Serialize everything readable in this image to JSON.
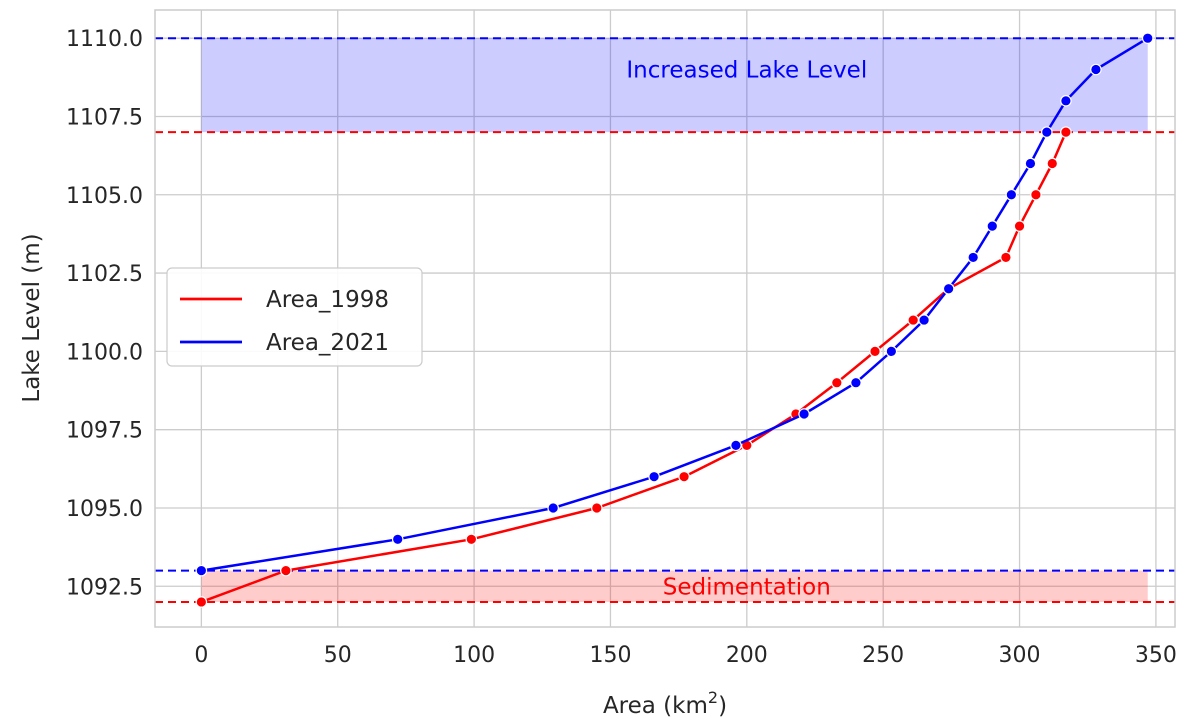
{
  "chart_data": {
    "type": "line",
    "xlabel_base": "Area (km",
    "xlabel_sup": "2",
    "xlabel_tail": ")",
    "ylabel": "Lake Level (m)",
    "xlim": [
      -17,
      357
    ],
    "ylim": [
      1091.2,
      1110.9
    ],
    "xticks": [
      0,
      50,
      100,
      150,
      200,
      250,
      300,
      350
    ],
    "yticks": [
      1092.5,
      1095.0,
      1097.5,
      1100.0,
      1102.5,
      1105.0,
      1107.5,
      1110.0
    ],
    "grid": true,
    "legend_position": "center-left",
    "series": [
      {
        "name": "Area_1998",
        "color": "#ff0000",
        "x": [
          0,
          31,
          99,
          145,
          177,
          200,
          218,
          233,
          247,
          261,
          274,
          295,
          300,
          306,
          312,
          317
        ],
        "y": [
          1092,
          1093,
          1094,
          1095,
          1096,
          1097,
          1098,
          1099,
          1100,
          1101,
          1102,
          1103,
          1104,
          1105,
          1106,
          1107
        ]
      },
      {
        "name": "Area_2021",
        "color": "#0000ff",
        "x": [
          0,
          72,
          129,
          166,
          196,
          221,
          240,
          253,
          265,
          274,
          283,
          290,
          297,
          304,
          310,
          317,
          328,
          347
        ],
        "y": [
          1093,
          1094,
          1095,
          1096,
          1097,
          1098,
          1099,
          1100,
          1101,
          1102,
          1103,
          1104,
          1105,
          1106,
          1107,
          1108,
          1109,
          1110
        ]
      }
    ],
    "reference_lines": [
      {
        "y": 1110,
        "color": "#0000ff"
      },
      {
        "y": 1107,
        "color": "#ff0000"
      },
      {
        "y": 1093,
        "color": "#0000ff"
      },
      {
        "y": 1092,
        "color": "#ff0000"
      }
    ],
    "bands": [
      {
        "x0": 0,
        "x1": 347,
        "y0": 1107,
        "y1": 1110,
        "fill": "#0000ff",
        "label": "Increased Lake Level",
        "label_color": "#0000ff",
        "label_x": 200,
        "label_y": 1109
      },
      {
        "x0": 0,
        "x1": 347,
        "y0": 1092,
        "y1": 1093,
        "fill": "#ff0000",
        "label": "Sedimentation",
        "label_color": "#ff0000",
        "label_x": 200,
        "label_y": 1092.5
      }
    ]
  }
}
